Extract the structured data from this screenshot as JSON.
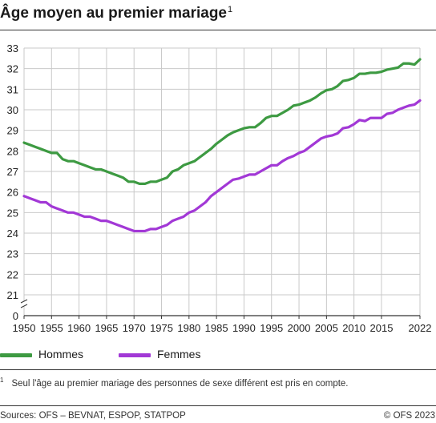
{
  "header": {
    "title": "Âge moyen au premier mariage",
    "title_sup": "1"
  },
  "footnote": {
    "marker": "1",
    "text": "Seul l'âge au premier mariage des personnes de sexe différent est pris en compte."
  },
  "footer": {
    "source": "Sources: OFS – BEVNAT, ESPOP, STATPOP",
    "copyright": "© OFS 2023"
  },
  "colors": {
    "hommes": "#3d9a42",
    "femmes": "#a238d6"
  },
  "chart_data": {
    "type": "line",
    "title": "Âge moyen au premier mariage",
    "xlabel": "",
    "ylabel": "",
    "xlim": [
      1950,
      2022
    ],
    "ylim": [
      20,
      33
    ],
    "axis_break": true,
    "grid": true,
    "legend": "bottom",
    "x_ticks": [
      1950,
      1955,
      1960,
      1965,
      1970,
      1975,
      1980,
      1985,
      1990,
      1995,
      2000,
      2005,
      2010,
      2015,
      2022
    ],
    "x_tick_labels": [
      "1950",
      "1955",
      "1960",
      "1965",
      "1970",
      "1975",
      "1980",
      "1985",
      "1990",
      "1995",
      "2000",
      "2005",
      "2010",
      "2015",
      "2022"
    ],
    "y_ticks": [
      21,
      22,
      23,
      24,
      25,
      26,
      27,
      28,
      29,
      30,
      31,
      32,
      33
    ],
    "y_tick_labels": [
      "21",
      "22",
      "23",
      "24",
      "25",
      "26",
      "27",
      "28",
      "29",
      "30",
      "31",
      "32",
      "33"
    ],
    "y_zero_label": "0",
    "x": [
      1950,
      1951,
      1952,
      1953,
      1954,
      1955,
      1956,
      1957,
      1958,
      1959,
      1960,
      1961,
      1962,
      1963,
      1964,
      1965,
      1966,
      1967,
      1968,
      1969,
      1970,
      1971,
      1972,
      1973,
      1974,
      1975,
      1976,
      1977,
      1978,
      1979,
      1980,
      1981,
      1982,
      1983,
      1984,
      1985,
      1986,
      1987,
      1988,
      1989,
      1990,
      1991,
      1992,
      1993,
      1994,
      1995,
      1996,
      1997,
      1998,
      1999,
      2000,
      2001,
      2002,
      2003,
      2004,
      2005,
      2006,
      2007,
      2008,
      2009,
      2010,
      2011,
      2012,
      2013,
      2014,
      2015,
      2016,
      2017,
      2018,
      2019,
      2020,
      2021,
      2022
    ],
    "series": [
      {
        "name": "Hommes",
        "values": [
          28.4,
          28.3,
          28.2,
          28.1,
          28.0,
          27.9,
          27.9,
          27.6,
          27.5,
          27.5,
          27.4,
          27.3,
          27.2,
          27.1,
          27.1,
          27.0,
          26.9,
          26.8,
          26.7,
          26.5,
          26.5,
          26.4,
          26.4,
          26.5,
          26.5,
          26.6,
          26.7,
          27.0,
          27.1,
          27.3,
          27.4,
          27.5,
          27.7,
          27.9,
          28.1,
          28.35,
          28.55,
          28.75,
          28.9,
          29.0,
          29.1,
          29.15,
          29.15,
          29.35,
          29.6,
          29.7,
          29.7,
          29.85,
          30.0,
          30.2,
          30.25,
          30.35,
          30.45,
          30.6,
          30.8,
          30.95,
          31.0,
          31.15,
          31.4,
          31.45,
          31.55,
          31.75,
          31.75,
          31.8,
          31.8,
          31.85,
          31.95,
          32.0,
          32.05,
          32.25,
          32.25,
          32.2,
          32.45
        ]
      },
      {
        "name": "Femmes",
        "values": [
          25.8,
          25.7,
          25.6,
          25.5,
          25.5,
          25.3,
          25.2,
          25.1,
          25.0,
          25.0,
          24.9,
          24.8,
          24.8,
          24.7,
          24.6,
          24.6,
          24.5,
          24.4,
          24.3,
          24.2,
          24.1,
          24.1,
          24.1,
          24.2,
          24.2,
          24.3,
          24.4,
          24.6,
          24.7,
          24.8,
          25.0,
          25.1,
          25.3,
          25.5,
          25.8,
          26.0,
          26.2,
          26.4,
          26.6,
          26.65,
          26.75,
          26.85,
          26.85,
          27.0,
          27.15,
          27.3,
          27.3,
          27.5,
          27.65,
          27.75,
          27.9,
          28.0,
          28.2,
          28.4,
          28.6,
          28.7,
          28.75,
          28.85,
          29.1,
          29.15,
          29.3,
          29.5,
          29.45,
          29.6,
          29.6,
          29.6,
          29.8,
          29.85,
          30.0,
          30.1,
          30.2,
          30.25,
          30.45
        ]
      }
    ]
  }
}
